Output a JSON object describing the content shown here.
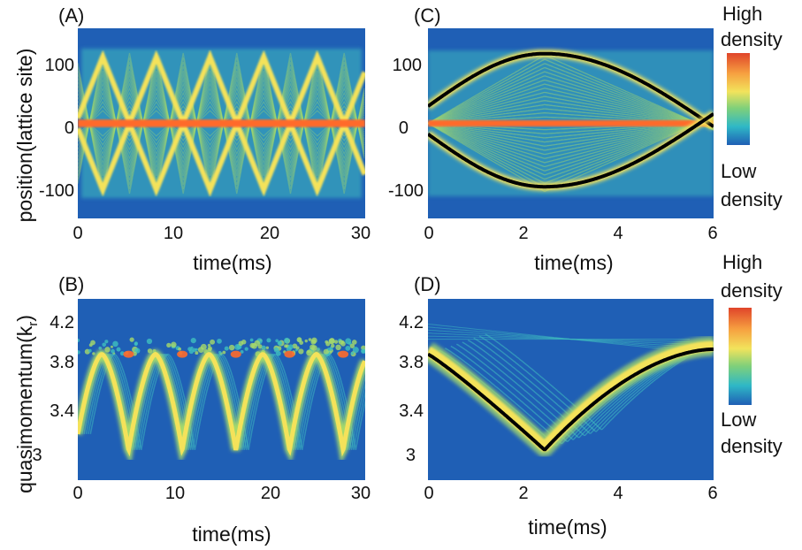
{
  "figure": {
    "ylabel_top": "position(lattice site)",
    "ylabel_bottom": "quasimomentum(k",
    "ylabel_bottom_sub": "r",
    "ylabel_bottom_end": ")"
  },
  "colorbar_top": {
    "high": [
      "High",
      "density"
    ],
    "low": [
      "Low",
      "density"
    ]
  },
  "colorbar_bottom": {
    "high": [
      "High",
      "density"
    ],
    "low": [
      "Low",
      "density"
    ]
  },
  "colors": {
    "background": "#1f5fb5",
    "core": "#ff6a2a",
    "bright": "#f4e25a",
    "branch": "#a6d96a",
    "faint": "#3fbfbf",
    "trajectory": "#000000",
    "colormap": [
      "#e0442a",
      "#f6a040",
      "#f2e35c",
      "#7fd07a",
      "#2fb8c6",
      "#1f5fb5"
    ]
  },
  "chart_data": [
    {
      "panel": "(A)",
      "type": "heatmap",
      "xlabel": "time(ms)",
      "ylabel": "position(lattice site)",
      "xlim": [
        0,
        30
      ],
      "ylim": [
        -150,
        150
      ],
      "xticks": [
        0,
        10,
        20,
        30
      ],
      "yticks": [
        100,
        0,
        -100
      ],
      "central_band": 0,
      "oscillation": {
        "amplitude": 105,
        "period_ms": 5.6,
        "first_max_ms": 2.6
      }
    },
    {
      "panel": "(B)",
      "type": "heatmap",
      "xlabel": "time(ms)",
      "ylabel": "quasimomentum(kr)",
      "xlim": [
        0,
        30
      ],
      "ylim": [
        2.7,
        4.5
      ],
      "xticks": [
        0,
        10,
        20,
        30
      ],
      "yticks": [
        4.2,
        3.8,
        3.4,
        3
      ],
      "oscillation": {
        "min": 3.0,
        "max": 3.95,
        "period_ms": 5.6,
        "first_min_ms": 2.5
      },
      "noise_band": [
        3.95,
        4.1
      ]
    },
    {
      "panel": "(C)",
      "type": "heatmap",
      "xlabel": "time(ms)",
      "xlim": [
        0,
        6
      ],
      "ylim": [
        -150,
        150
      ],
      "xticks": [
        0,
        2,
        4,
        6
      ],
      "yticks": [
        100,
        0,
        -100
      ],
      "central_band": 0,
      "trajectories": [
        {
          "x": [
            0,
            2.45,
            6
          ],
          "y": [
            27,
            110,
            -5
          ]
        },
        {
          "x": [
            0,
            2.45,
            6
          ],
          "y": [
            -17,
            -100,
            15
          ]
        }
      ]
    },
    {
      "panel": "(D)",
      "type": "heatmap",
      "xlabel": "time(ms)",
      "xlim": [
        0,
        6
      ],
      "ylim": [
        2.7,
        4.5
      ],
      "xticks": [
        0,
        2,
        4,
        6
      ],
      "yticks": [
        4.2,
        3.8,
        3.4,
        3
      ],
      "trajectories": [
        {
          "x": [
            0,
            2.45,
            6
          ],
          "y": [
            3.95,
            3.0,
            4.0
          ]
        }
      ]
    }
  ]
}
